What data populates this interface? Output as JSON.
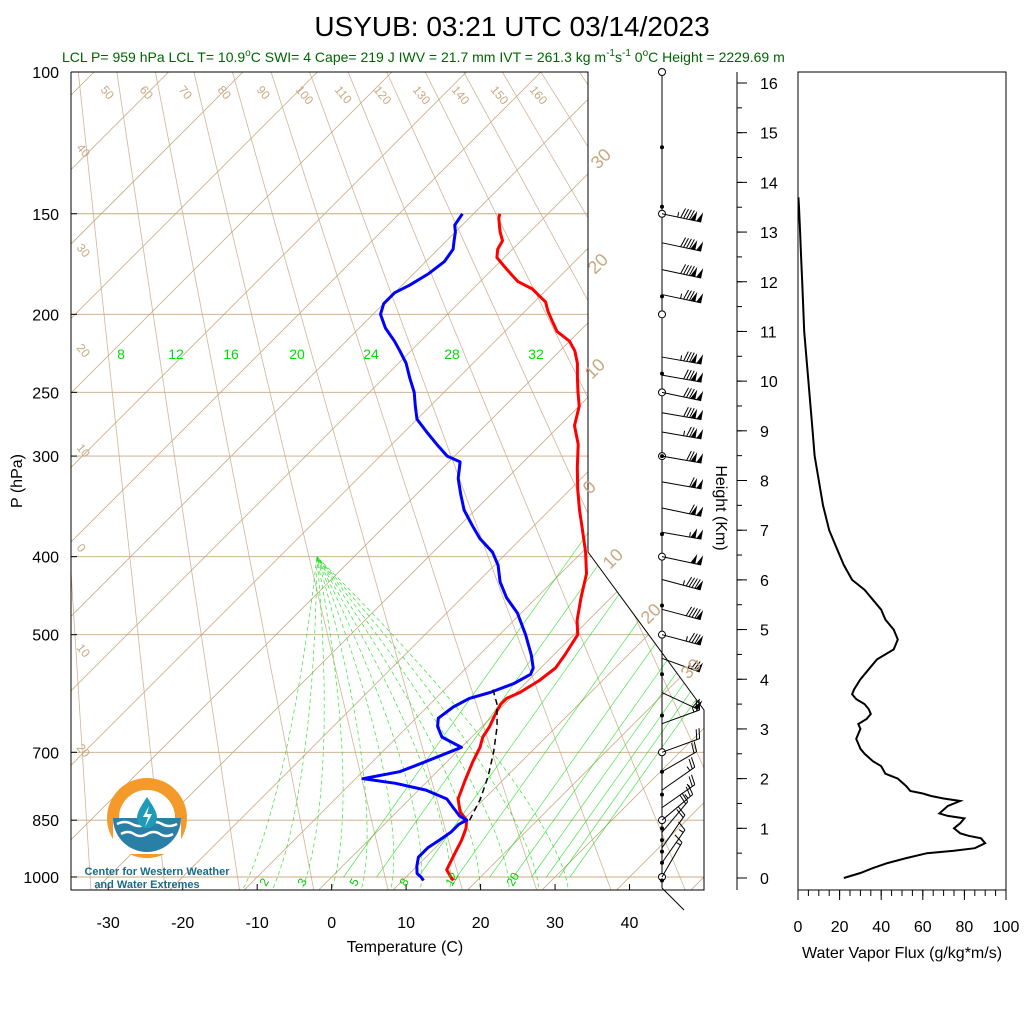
{
  "header": {
    "title": "USYUB: 03:21 UTC 03/14/2023",
    "subtitle_a": "LCL P= 959 hPa  LCL T= 10.9",
    "subtitle_b": "C  SWI= 4  Cape= 219 J  IWV = 21.7 mm  IVT = 261.3 kg m",
    "subtitle_c": "s",
    "subtitle_d": "  0",
    "subtitle_e": "C Height = 2229.69 m",
    "degree": "o",
    "sup_m1": "-1",
    "sup_s1": "-1"
  },
  "logo": {
    "line1": "Center for Western Weather",
    "line2": "and Water Extremes",
    "colors": {
      "orange": "#f39a2b",
      "blue": "#2a7fa6",
      "teal": "#1f9bb8"
    }
  },
  "colors": {
    "temperature": "#ff0000",
    "dewpoint": "#0000ff",
    "isotherm": "#c8a882",
    "mixing_ratio": "#00dd00",
    "parcel": "#000000",
    "profile": "#000000"
  },
  "chart_data": [
    {
      "type": "line",
      "subtype": "skew-t log-p sounding",
      "xlabel": "Temperature (C)",
      "ylabel": "P (hPa)",
      "xlim": [
        -35,
        50
      ],
      "ylim": [
        1050,
        100
      ],
      "yscale": "log",
      "xticks": [
        -30,
        -20,
        -10,
        0,
        10,
        20,
        30,
        40
      ],
      "xtick_labels": [
        "-30",
        "-20",
        "-10",
        "0",
        "10",
        "20",
        "30",
        "40"
      ],
      "yticks": [
        100,
        150,
        200,
        250,
        300,
        400,
        500,
        700,
        850,
        1000
      ],
      "ytick_labels": [
        "100",
        "150",
        "200",
        "250",
        "300",
        "400",
        "500",
        "700",
        "850",
        "1000"
      ],
      "isotherm_labels_top": [
        "50",
        "60",
        "70",
        "80",
        "90",
        "100",
        "110",
        "120",
        "130",
        "140",
        "150",
        "160"
      ],
      "isotherm_labels_left": [
        "40",
        "30",
        "20",
        "10",
        "0",
        "10",
        "20"
      ],
      "isotherm_labels_right": [
        "30",
        "20",
        "10",
        "0",
        "10",
        "20",
        "30"
      ],
      "mixing_ratio_labels": [
        "8",
        "12",
        "16",
        "20",
        "24",
        "28",
        "32"
      ],
      "mixing_ratio_labels_bottom": [
        "2",
        "3",
        "5",
        "8",
        "12",
        "20"
      ],
      "series": [
        {
          "name": "temperature",
          "points": [
            [
              16.8,
              1010
            ],
            [
              16.0,
              1000
            ],
            [
              14.5,
              980
            ],
            [
              14.0,
              960
            ],
            [
              13.5,
              940
            ],
            [
              12.5,
              900
            ],
            [
              11.5,
              870
            ],
            [
              10.5,
              850
            ],
            [
              8.5,
              830
            ],
            [
              6.5,
              800
            ],
            [
              5.0,
              760
            ],
            [
              3.5,
              720
            ],
            [
              2.5,
              690
            ],
            [
              1.5,
              670
            ],
            [
              1.0,
              650
            ],
            [
              0.0,
              625
            ],
            [
              -0.5,
              610
            ],
            [
              -0.5,
              600
            ],
            [
              0.5,
              590
            ],
            [
              1.5,
              570
            ],
            [
              2.0,
              550
            ],
            [
              1.5,
              530
            ],
            [
              0.5,
              500
            ],
            [
              -1.5,
              480
            ],
            [
              -4,
              450
            ],
            [
              -6.5,
              420
            ],
            [
              -9.5,
              395
            ],
            [
              -13,
              370
            ],
            [
              -16,
              350
            ],
            [
              -19,
              330
            ],
            [
              -22,
              310
            ],
            [
              -25,
              290
            ],
            [
              -28,
              275
            ],
            [
              -30,
              260
            ],
            [
              -32,
              250
            ],
            [
              -34,
              240
            ],
            [
              -36,
              230
            ],
            [
              -38,
              222
            ],
            [
              -40,
              216
            ],
            [
              -43,
              210
            ],
            [
              -45,
              204
            ],
            [
              -47,
              198
            ],
            [
              -48.5,
              193
            ],
            [
              -50,
              190
            ],
            [
              -52,
              186
            ],
            [
              -55,
              182
            ],
            [
              -57,
              178
            ],
            [
              -59,
              174
            ],
            [
              -61,
              170
            ],
            [
              -62,
              166
            ],
            [
              -62.5,
              162
            ],
            [
              -64,
              158
            ],
            [
              -65,
              155
            ],
            [
              -66,
              152
            ],
            [
              -66.5,
              150
            ]
          ]
        },
        {
          "name": "dewpoint",
          "points": [
            [
              12.8,
              1010
            ],
            [
              12.0,
              1000
            ],
            [
              11.0,
              990
            ],
            [
              10.0,
              970
            ],
            [
              9.0,
              945
            ],
            [
              9.0,
              920
            ],
            [
              9.5,
              900
            ],
            [
              10.0,
              880
            ],
            [
              10.0,
              860
            ],
            [
              10.5,
              850
            ],
            [
              9.0,
              840
            ],
            [
              7.0,
              820
            ],
            [
              5.0,
              800
            ],
            [
              1.0,
              780
            ],
            [
              -4.0,
              765
            ],
            [
              -9.0,
              755
            ],
            [
              -5.0,
              740
            ],
            [
              -3.0,
              720
            ],
            [
              -1.0,
              700
            ],
            [
              0.0,
              690
            ],
            [
              -2.0,
              680
            ],
            [
              -4.0,
              670
            ],
            [
              -6.0,
              650
            ],
            [
              -7.0,
              635
            ],
            [
              -6.5,
              615
            ],
            [
              -5.5,
              600
            ],
            [
              -3.5,
              590
            ],
            [
              -1.5,
              575
            ],
            [
              -0.5,
              560
            ],
            [
              -1.0,
              550
            ],
            [
              -3.0,
              530
            ],
            [
              -6.5,
              500
            ],
            [
              -10.5,
              470
            ],
            [
              -14,
              450
            ],
            [
              -17,
              430
            ],
            [
              -19.5,
              410
            ],
            [
              -22,
              395
            ],
            [
              -25.5,
              380
            ],
            [
              -28.5,
              365
            ],
            [
              -31.5,
              350
            ],
            [
              -34,
              335
            ],
            [
              -36.5,
              320
            ],
            [
              -38.5,
              305
            ],
            [
              -41,
              300
            ],
            [
              -44,
              290
            ],
            [
              -47,
              280
            ],
            [
              -50,
              270
            ],
            [
              -52,
              260
            ],
            [
              -54,
              250
            ],
            [
              -56.5,
              240
            ],
            [
              -59,
              230
            ],
            [
              -61.5,
              222
            ],
            [
              -63.5,
              216
            ],
            [
              -66.5,
              208
            ],
            [
              -69,
              200
            ],
            [
              -70,
              194
            ],
            [
              -70,
              188
            ],
            [
              -69,
              184
            ],
            [
              -68,
              178
            ],
            [
              -67.5,
              172
            ],
            [
              -68,
              166
            ],
            [
              -69,
              162
            ],
            [
              -70,
              158
            ],
            [
              -71,
              155
            ],
            [
              -71.5,
              150
            ]
          ]
        },
        {
          "name": "parcel",
          "points": [
            [
              10.9,
              850
            ],
            [
              9.5,
              800
            ],
            [
              7.5,
              750
            ],
            [
              5.0,
              700
            ],
            [
              2.0,
              650
            ],
            [
              -1.0,
              610
            ],
            [
              -3.5,
              585
            ]
          ]
        }
      ]
    },
    {
      "type": "line",
      "xlabel": "Water Vapor Flux (g/kg*m/s)",
      "ylabel": "Height (Km)",
      "xlim": [
        0,
        100
      ],
      "ylim": [
        -0.2,
        16.3
      ],
      "xticks": [
        0,
        20,
        40,
        60,
        80,
        100
      ],
      "xtick_labels": [
        "0",
        "20",
        "40",
        "60",
        "80",
        "100"
      ],
      "yticks": [
        0,
        1,
        2,
        3,
        4,
        5,
        6,
        7,
        8,
        9,
        10,
        11,
        12,
        13,
        14,
        15,
        16
      ],
      "ytick_labels": [
        "0",
        "1",
        "2",
        "3",
        "4",
        "5",
        "6",
        "7",
        "8",
        "9",
        "10",
        "11",
        "12",
        "13",
        "14",
        "15",
        "16"
      ],
      "series": [
        {
          "name": "water vapor flux",
          "points": [
            [
              22,
              0.0
            ],
            [
              30,
              0.1
            ],
            [
              36,
              0.2
            ],
            [
              43,
              0.3
            ],
            [
              52,
              0.4
            ],
            [
              62,
              0.5
            ],
            [
              75,
              0.55
            ],
            [
              85,
              0.6
            ],
            [
              90,
              0.7
            ],
            [
              88,
              0.8
            ],
            [
              82,
              0.85
            ],
            [
              78,
              0.9
            ],
            [
              75,
              1.0
            ],
            [
              78,
              1.1
            ],
            [
              80,
              1.2
            ],
            [
              72,
              1.25
            ],
            [
              68,
              1.3
            ],
            [
              72,
              1.45
            ],
            [
              78,
              1.55
            ],
            [
              70,
              1.6
            ],
            [
              64,
              1.65
            ],
            [
              60,
              1.7
            ],
            [
              54,
              1.75
            ],
            [
              52,
              1.85
            ],
            [
              48,
              2.0
            ],
            [
              42,
              2.1
            ],
            [
              40,
              2.25
            ],
            [
              36,
              2.35
            ],
            [
              32,
              2.5
            ],
            [
              30,
              2.6
            ],
            [
              29,
              2.7
            ],
            [
              28,
              2.8
            ],
            [
              29,
              2.9
            ],
            [
              30,
              3.0
            ],
            [
              29,
              3.1
            ],
            [
              33,
              3.2
            ],
            [
              35,
              3.3
            ],
            [
              34,
              3.4
            ],
            [
              32,
              3.5
            ],
            [
              28,
              3.6
            ],
            [
              26,
              3.7
            ],
            [
              27,
              3.8
            ],
            [
              30,
              4.0
            ],
            [
              34,
              4.2
            ],
            [
              38,
              4.4
            ],
            [
              42,
              4.5
            ],
            [
              46,
              4.6
            ],
            [
              48,
              4.8
            ],
            [
              46,
              5.0
            ],
            [
              42,
              5.2
            ],
            [
              40,
              5.4
            ],
            [
              36,
              5.6
            ],
            [
              32,
              5.8
            ],
            [
              26,
              6.0
            ],
            [
              22,
              6.3
            ],
            [
              18,
              6.7
            ],
            [
              15,
              7.0
            ],
            [
              12,
              7.5
            ],
            [
              10,
              8.0
            ],
            [
              8,
              8.5
            ],
            [
              7,
              9.0
            ],
            [
              6,
              9.5
            ],
            [
              5,
              10.0
            ],
            [
              4,
              10.5
            ],
            [
              3,
              11.0
            ],
            [
              2.5,
              11.5
            ],
            [
              2,
              12.0
            ],
            [
              1.5,
              12.5
            ],
            [
              1.0,
              13.0
            ],
            [
              0.5,
              13.5
            ],
            [
              0.2,
              13.7
            ]
          ]
        }
      ]
    }
  ],
  "wind_barbs": [
    {
      "p": 150,
      "dir": 282,
      "spd": 145
    },
    {
      "p": 163,
      "dir": 282,
      "spd": 140
    },
    {
      "p": 176,
      "dir": 282,
      "spd": 140
    },
    {
      "p": 189,
      "dir": 282,
      "spd": 135
    },
    {
      "p": 226,
      "dir": 280,
      "spd": 135
    },
    {
      "p": 238,
      "dir": 280,
      "spd": 130
    },
    {
      "p": 250,
      "dir": 282,
      "spd": 130
    },
    {
      "p": 265,
      "dir": 280,
      "spd": 130
    },
    {
      "p": 280,
      "dir": 280,
      "spd": 125
    },
    {
      "p": 300,
      "dir": 280,
      "spd": 120
    },
    {
      "p": 323,
      "dir": 280,
      "spd": 110
    },
    {
      "p": 348,
      "dir": 282,
      "spd": 110
    },
    {
      "p": 373,
      "dir": 280,
      "spd": 105
    },
    {
      "p": 400,
      "dir": 282,
      "spd": 100
    },
    {
      "p": 427,
      "dir": 285,
      "spd": 95
    },
    {
      "p": 465,
      "dir": 285,
      "spd": 90
    },
    {
      "p": 500,
      "dir": 285,
      "spd": 85
    },
    {
      "p": 535,
      "dir": 290,
      "spd": 75
    },
    {
      "p": 590,
      "dir": 295,
      "spd": 60
    },
    {
      "p": 645,
      "dir": 250,
      "spd": 25
    },
    {
      "p": 700,
      "dir": 250,
      "spd": 20
    },
    {
      "p": 740,
      "dir": 240,
      "spd": 20
    },
    {
      "p": 780,
      "dir": 235,
      "spd": 25
    },
    {
      "p": 820,
      "dir": 235,
      "spd": 25
    },
    {
      "p": 850,
      "dir": 230,
      "spd": 25
    },
    {
      "p": 880,
      "dir": 220,
      "spd": 20
    },
    {
      "p": 920,
      "dir": 215,
      "spd": 20
    },
    {
      "p": 960,
      "dir": 215,
      "spd": 15
    },
    {
      "p": 1000,
      "dir": 210,
      "spd": 15
    }
  ],
  "profile_dots": [
    {
      "p": 100,
      "kind": "open"
    },
    {
      "p": 124,
      "kind": "dot"
    },
    {
      "p": 147,
      "kind": "dot"
    },
    {
      "p": 150,
      "kind": "open"
    },
    {
      "p": 190,
      "kind": "dot"
    },
    {
      "p": 200,
      "kind": "open"
    },
    {
      "p": 237,
      "kind": "dot"
    },
    {
      "p": 250,
      "kind": "open"
    },
    {
      "p": 300,
      "kind": "open"
    },
    {
      "p": 300,
      "kind": "dot"
    },
    {
      "p": 375,
      "kind": "dot"
    },
    {
      "p": 400,
      "kind": "open"
    },
    {
      "p": 460,
      "kind": "dot"
    },
    {
      "p": 500,
      "kind": "open"
    },
    {
      "p": 560,
      "kind": "dot"
    },
    {
      "p": 630,
      "kind": "dot"
    },
    {
      "p": 700,
      "kind": "open"
    },
    {
      "p": 740,
      "kind": "dot"
    },
    {
      "p": 790,
      "kind": "dot"
    },
    {
      "p": 850,
      "kind": "open"
    },
    {
      "p": 870,
      "kind": "dot"
    },
    {
      "p": 900,
      "kind": "dot"
    },
    {
      "p": 930,
      "kind": "dot"
    },
    {
      "p": 960,
      "kind": "dot"
    },
    {
      "p": 1000,
      "kind": "open"
    },
    {
      "p": 1010,
      "kind": "dot"
    }
  ]
}
